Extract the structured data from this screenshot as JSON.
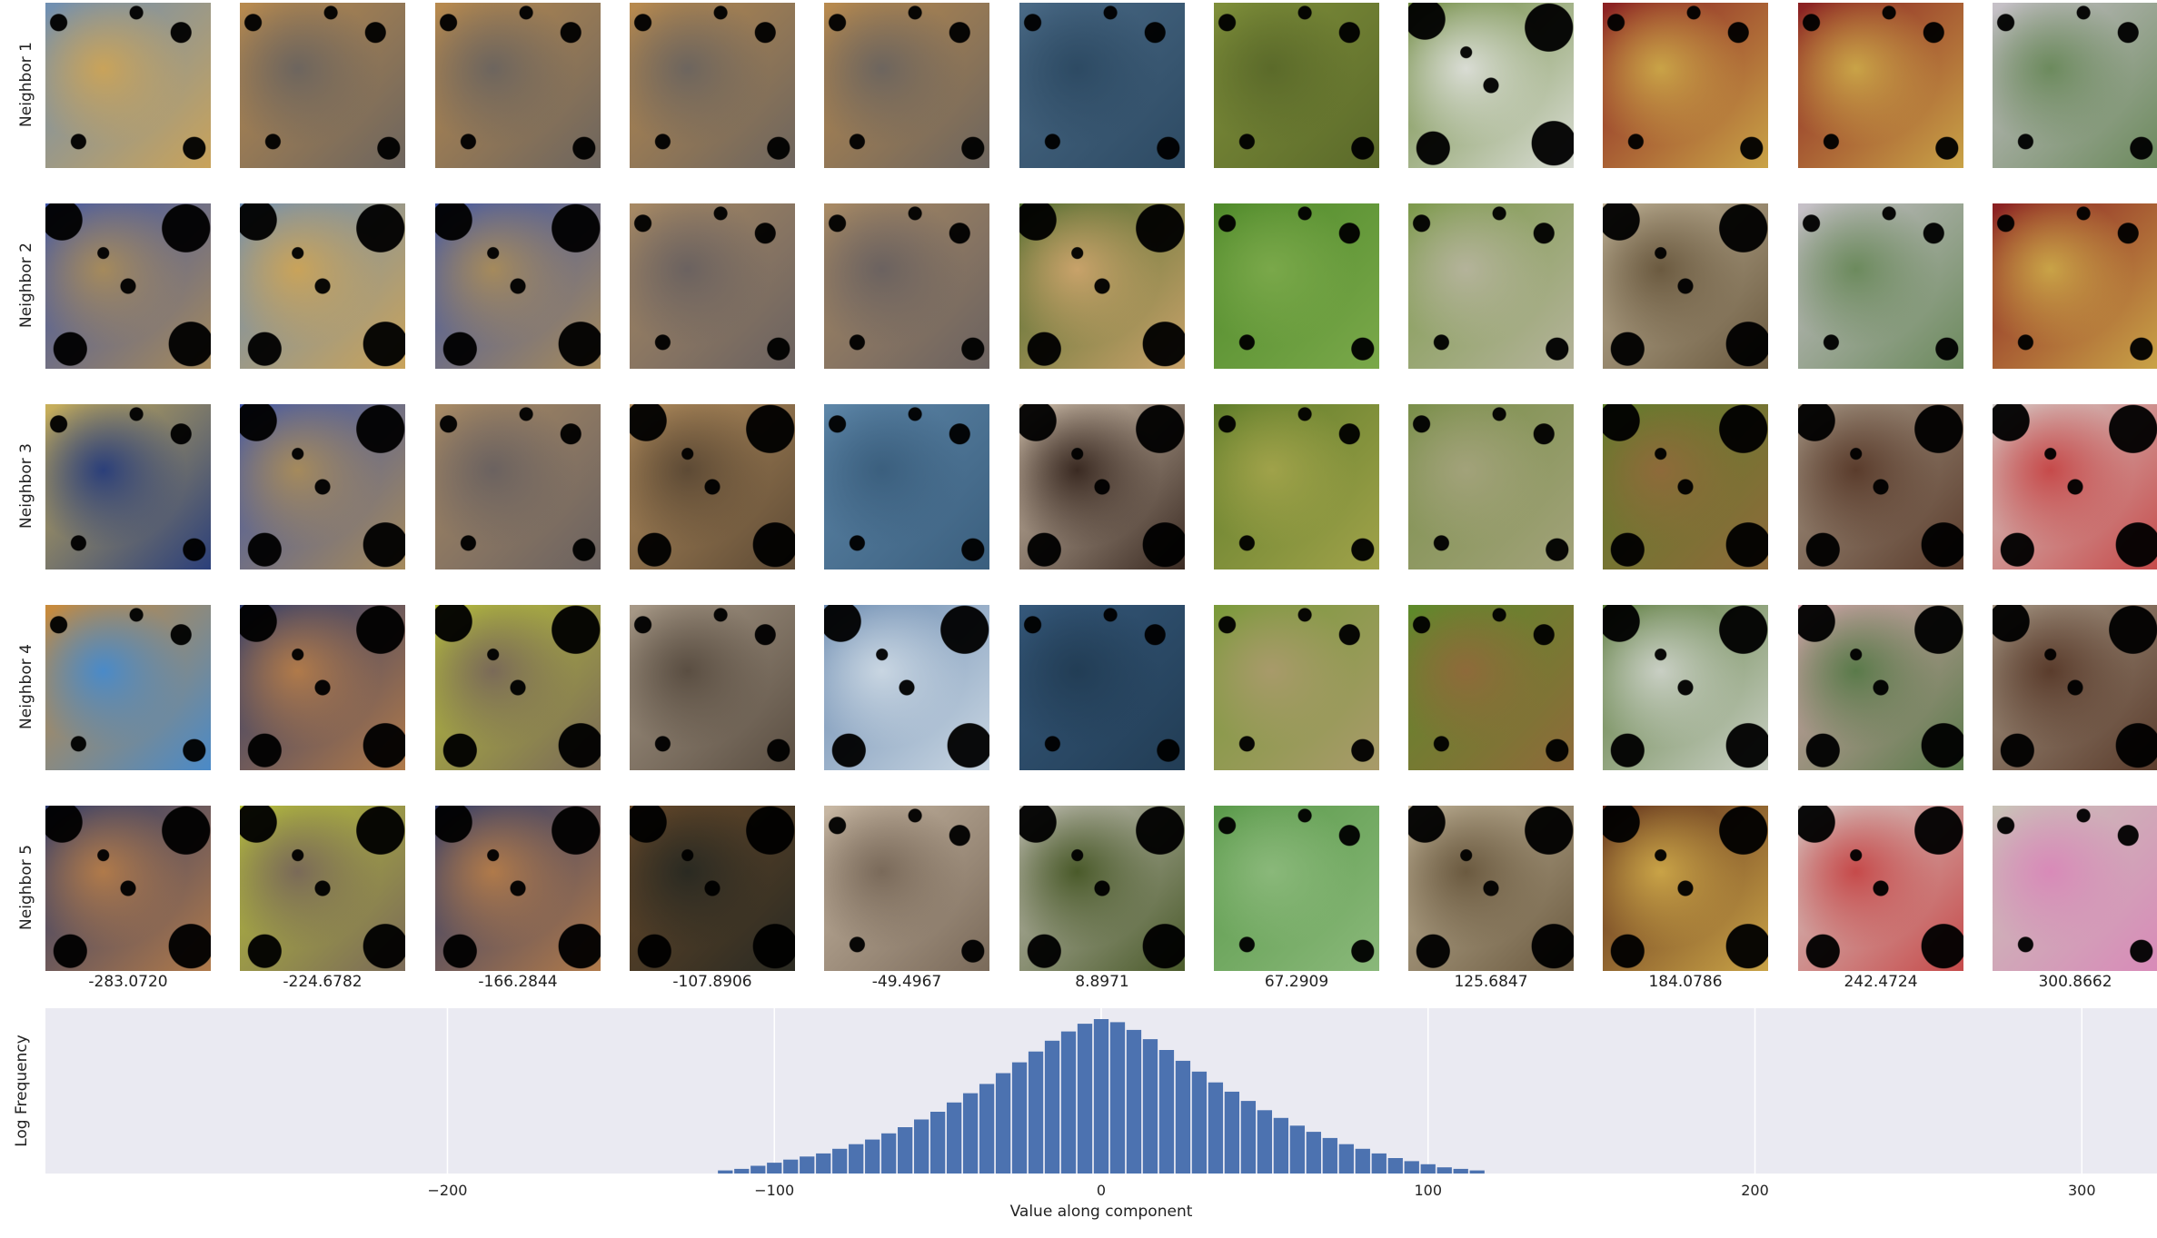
{
  "row_labels": [
    "Neighbor 1",
    "Neighbor 2",
    "Neighbor 3",
    "Neighbor 4",
    "Neighbor 5"
  ],
  "column_values": [
    "-283.0720",
    "-224.6782",
    "-166.2844",
    "-107.8906",
    "-49.4967",
    "8.8971",
    "67.2909",
    "125.6847",
    "184.0786",
    "242.4724",
    "300.8662"
  ],
  "thumbnails": [
    [
      {
        "name": "child-snow-photo",
        "c1": "#6f8fb3",
        "c2": "#c9a35a",
        "heavy": false
      },
      {
        "name": "golden-puppy-photo",
        "c1": "#b88a4e",
        "c2": "#6d655e",
        "heavy": false
      },
      {
        "name": "golden-puppy-photo",
        "c1": "#b88a4e",
        "c2": "#6d655e",
        "heavy": false
      },
      {
        "name": "golden-puppy-photo",
        "c1": "#b88a4e",
        "c2": "#6d655e",
        "heavy": false
      },
      {
        "name": "golden-puppy-photo",
        "c1": "#b88a4e",
        "c2": "#6d655e",
        "heavy": false
      },
      {
        "name": "water-photo",
        "c1": "#4a6a86",
        "c2": "#2d4a63",
        "heavy": false
      },
      {
        "name": "grass-photo",
        "c1": "#7f8f3a",
        "c2": "#5b6a2a",
        "heavy": false
      },
      {
        "name": "grass-insect-photo",
        "c1": "#6e8a3e",
        "c2": "#d9dcd4",
        "heavy": true
      },
      {
        "name": "wine-glass-photo",
        "c1": "#8a1f22",
        "c2": "#c9a347",
        "heavy": false
      },
      {
        "name": "wine-glass-photo",
        "c1": "#8a1f22",
        "c2": "#c9a347",
        "heavy": false
      },
      {
        "name": "salt-shaker-photo",
        "c1": "#c7c1c9",
        "c2": "#6c8a5d",
        "heavy": false
      }
    ],
    [
      {
        "name": "boy-dog-photo",
        "c1": "#3f56a8",
        "c2": "#a58a5c",
        "heavy": true
      },
      {
        "name": "child-snow-photo",
        "c1": "#6f8fb3",
        "c2": "#c9a35a",
        "heavy": true
      },
      {
        "name": "boy-dog-photo",
        "c1": "#3f56a8",
        "c2": "#a58a5c",
        "heavy": true
      },
      {
        "name": "fur-floor-photo",
        "c1": "#a88a64",
        "c2": "#6b6260",
        "heavy": false
      },
      {
        "name": "fur-floor-photo",
        "c1": "#a88a64",
        "c2": "#6b6260",
        "heavy": false
      },
      {
        "name": "dogs-grass-photo",
        "c1": "#4e6b2e",
        "c2": "#c8a26a",
        "heavy": true
      },
      {
        "name": "grass-butterfly-photo",
        "c1": "#4f8a2a",
        "c2": "#7aa84a",
        "heavy": false
      },
      {
        "name": "grass-butterfly-photo",
        "c1": "#7d9a4c",
        "c2": "#b4b39a",
        "heavy": false
      },
      {
        "name": "pan-photo",
        "c1": "#c2b59a",
        "c2": "#6b5a40",
        "heavy": true
      },
      {
        "name": "salt-shaker-photo",
        "c1": "#c7c1c9",
        "c2": "#6c8a5d",
        "heavy": false
      },
      {
        "name": "wine-glass-photo",
        "c1": "#8a1f22",
        "c2": "#c9a347",
        "heavy": false
      }
    ],
    [
      {
        "name": "yellow-blue-fabric-photo",
        "c1": "#c9b05a",
        "c2": "#2b3f7a",
        "heavy": false
      },
      {
        "name": "boy-dog-photo",
        "c1": "#3f56a8",
        "c2": "#a58a5c",
        "heavy": true
      },
      {
        "name": "fur-floor-photo",
        "c1": "#a88a64",
        "c2": "#6b6260",
        "heavy": false
      },
      {
        "name": "terrier-puppy-photo",
        "c1": "#b58f5e",
        "c2": "#5d4a35",
        "heavy": true
      },
      {
        "name": "water-photo",
        "c1": "#5d86a8",
        "c2": "#3b5f7e",
        "heavy": false
      },
      {
        "name": "puppy-hand-photo",
        "c1": "#d8c8b4",
        "c2": "#3a2a22",
        "heavy": true
      },
      {
        "name": "leaves-photo",
        "c1": "#5f7d2a",
        "c2": "#a0a24a",
        "heavy": false
      },
      {
        "name": "grass-photo",
        "c1": "#7a8f4a",
        "c2": "#a2a27a",
        "heavy": false
      },
      {
        "name": "snail-leaves-photo",
        "c1": "#5d7d2a",
        "c2": "#8e6a3a",
        "heavy": true
      },
      {
        "name": "kitchen-jars-photo",
        "c1": "#a89a88",
        "c2": "#5a3c2c",
        "heavy": true
      },
      {
        "name": "glass-jars-photo",
        "c1": "#d6d2ce",
        "c2": "#c64a4a",
        "heavy": true
      }
    ],
    [
      {
        "name": "tiger-photo",
        "c1": "#c98a3a",
        "c2": "#4a8ac8",
        "heavy": false
      },
      {
        "name": "man-dog-photo",
        "c1": "#2d3a6a",
        "c2": "#b07a4a",
        "heavy": true
      },
      {
        "name": "yellow-board-photo",
        "c1": "#b8c23a",
        "c2": "#7a6a58",
        "heavy": true
      },
      {
        "name": "wolf-photo",
        "c1": "#a89a88",
        "c2": "#5a4e42",
        "heavy": false
      },
      {
        "name": "sky-clouds-photo",
        "c1": "#6a8ab0",
        "c2": "#c9d6e2",
        "heavy": true
      },
      {
        "name": "ocean-whale-photo",
        "c1": "#35587a",
        "c2": "#223d55",
        "heavy": false
      },
      {
        "name": "grass-butterfly-photo",
        "c1": "#7a9a3a",
        "c2": "#a89a6a",
        "heavy": false
      },
      {
        "name": "snail-leaves-photo",
        "c1": "#5d8a2a",
        "c2": "#8e6a3a",
        "heavy": false
      },
      {
        "name": "grass-insect-photo",
        "c1": "#5a7a3a",
        "c2": "#c9cfc4",
        "heavy": true
      },
      {
        "name": "pitcher-roses-photo",
        "c1": "#d8a8b0",
        "c2": "#5a7a4a",
        "heavy": true
      },
      {
        "name": "kitchen-jars-photo",
        "c1": "#a89a88",
        "c2": "#5a3c2c",
        "heavy": true
      }
    ],
    [
      {
        "name": "man-dog-photo",
        "c1": "#2d3a6a",
        "c2": "#b07a4a",
        "heavy": true
      },
      {
        "name": "yellow-board-photo",
        "c1": "#b8c23a",
        "c2": "#7a6a58",
        "heavy": true
      },
      {
        "name": "man-dog-photo",
        "c1": "#2d3a6a",
        "c2": "#b07a4a",
        "heavy": true
      },
      {
        "name": "shepherd-dog-photo",
        "c1": "#6a4a2a",
        "c2": "#2a2a22",
        "heavy": true
      },
      {
        "name": "alpaca-photo",
        "c1": "#c8b8a4",
        "c2": "#7a6a5a",
        "heavy": false
      },
      {
        "name": "white-dog-photo",
        "c1": "#c8c4bc",
        "c2": "#4a5a2a",
        "heavy": true
      },
      {
        "name": "grass-closeup-photo",
        "c1": "#5a9a4a",
        "c2": "#8ab87a",
        "heavy": false
      },
      {
        "name": "pan-photo",
        "c1": "#c2b59a",
        "c2": "#6b5a40",
        "heavy": true
      },
      {
        "name": "cake-stand-photo",
        "c1": "#5a2a1a",
        "c2": "#c9a347",
        "heavy": true
      },
      {
        "name": "glass-jars-photo",
        "c1": "#d6d2ce",
        "c2": "#c64a4a",
        "heavy": true
      },
      {
        "name": "measuring-cup-orchid-photo",
        "c1": "#c9c4b8",
        "c2": "#d88ab8",
        "heavy": false
      }
    ]
  ],
  "chart_data": {
    "type": "bar",
    "xlabel": "Value along component",
    "ylabel": "Log Frequency",
    "xlim": [
      -323,
      323
    ],
    "xticks": [
      -200,
      -100,
      0,
      100,
      200,
      300
    ],
    "xtick_labels": [
      "−200",
      "−100",
      "0",
      "100",
      "200",
      "300"
    ],
    "grid": true,
    "bar_color": "#4c72b0",
    "background": "#eaeaf2",
    "bin_width": 4.8,
    "bins": [
      [
        -115,
        0.02
      ],
      [
        -110,
        0.03
      ],
      [
        -105,
        0.05
      ],
      [
        -100,
        0.07
      ],
      [
        -95,
        0.09
      ],
      [
        -90,
        0.11
      ],
      [
        -85,
        0.13
      ],
      [
        -80,
        0.16
      ],
      [
        -75,
        0.19
      ],
      [
        -70,
        0.22
      ],
      [
        -65,
        0.26
      ],
      [
        -60,
        0.3
      ],
      [
        -55,
        0.35
      ],
      [
        -50,
        0.4
      ],
      [
        -45,
        0.46
      ],
      [
        -40,
        0.52
      ],
      [
        -35,
        0.58
      ],
      [
        -30,
        0.65
      ],
      [
        -25,
        0.72
      ],
      [
        -20,
        0.79
      ],
      [
        -15,
        0.86
      ],
      [
        -10,
        0.92
      ],
      [
        -5,
        0.97
      ],
      [
        0,
        1.0
      ],
      [
        5,
        0.98
      ],
      [
        10,
        0.93
      ],
      [
        15,
        0.87
      ],
      [
        20,
        0.8
      ],
      [
        25,
        0.73
      ],
      [
        30,
        0.66
      ],
      [
        35,
        0.59
      ],
      [
        40,
        0.53
      ],
      [
        45,
        0.47
      ],
      [
        50,
        0.41
      ],
      [
        55,
        0.36
      ],
      [
        60,
        0.31
      ],
      [
        65,
        0.27
      ],
      [
        70,
        0.23
      ],
      [
        75,
        0.19
      ],
      [
        80,
        0.16
      ],
      [
        85,
        0.13
      ],
      [
        90,
        0.1
      ],
      [
        95,
        0.08
      ],
      [
        100,
        0.06
      ],
      [
        105,
        0.04
      ],
      [
        110,
        0.03
      ],
      [
        115,
        0.02
      ]
    ]
  }
}
